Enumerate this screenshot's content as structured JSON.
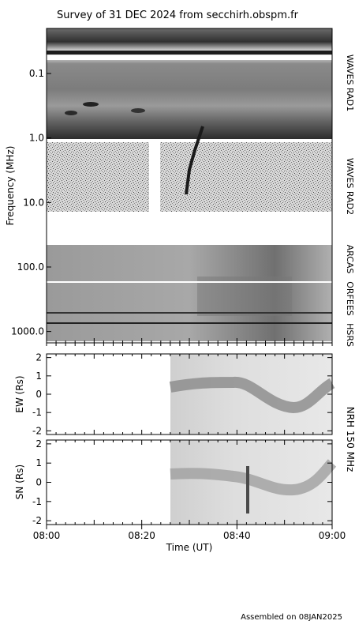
{
  "title": "Survey of 31 DEC 2024 from secchirh.obspm.fr",
  "footer": "Assembled on 08JAN2025",
  "chart_data": [
    {
      "type": "heatmap",
      "name": "dynamic-spectrum",
      "ylabel": "Frequency (MHz)",
      "y_scale": "log",
      "y_reversed": true,
      "ylim": [
        0.02,
        1500
      ],
      "y_ticks": [
        "0.1",
        "1.0",
        "10.0",
        "100.0",
        "1000.0"
      ],
      "instruments": [
        "WAVES RAD1",
        "WAVES RAD2",
        "ARCAS",
        "ORFEES",
        "HSRS"
      ],
      "colormap": "grayscale"
    },
    {
      "type": "heatmap",
      "name": "nrh-ew",
      "ylabel": "EW (Rs)",
      "ylim": [
        -2.2,
        2.2
      ],
      "y_ticks": [
        "2",
        "1",
        "0",
        "-1",
        "-2"
      ]
    },
    {
      "type": "heatmap",
      "name": "nrh-sn",
      "ylabel": "SN (Rs)",
      "ylim": [
        -2.2,
        2.2
      ],
      "y_ticks": [
        "2",
        "1",
        "0",
        "-1",
        "-2"
      ]
    }
  ],
  "nrh_label": "NRH 150 MHz",
  "x_axis": {
    "label": "Time (UT)",
    "range": [
      "08:00",
      "09:00"
    ],
    "ticks": [
      "08:00",
      "08:20",
      "08:40",
      "09:00"
    ]
  }
}
